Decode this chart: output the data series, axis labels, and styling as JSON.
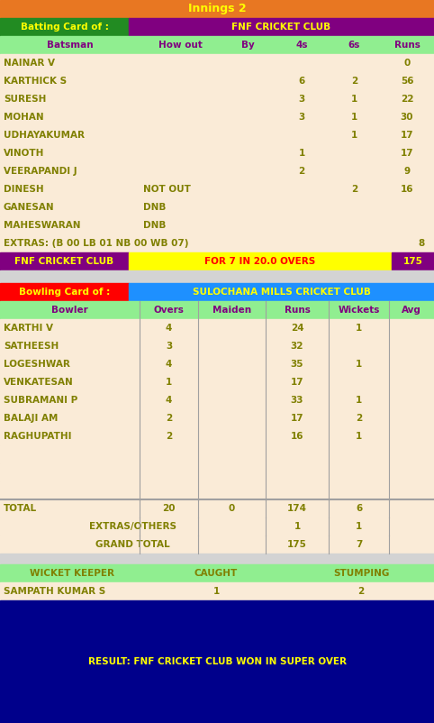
{
  "title": "Innings 2",
  "title_bg": "#E87722",
  "title_color": "#FFFF00",
  "batting_label": "Batting Card of :",
  "batting_team": "FNF CRICKET CLUB",
  "batting_label_bg": "#228B22",
  "batting_team_bg": "#800080",
  "batting_team_color": "#FFFF00",
  "batting_label_color": "#FFFF00",
  "bat_header": [
    "Batsman",
    "How out",
    "By",
    "4s",
    "6s",
    "Runs"
  ],
  "bat_header_bg": "#90EE90",
  "bat_header_color": "#800080",
  "bat_rows": [
    [
      "NAINAR V",
      "",
      "",
      "",
      "",
      "0"
    ],
    [
      "KARTHICK S",
      "",
      "",
      "6",
      "2",
      "56"
    ],
    [
      "SURESH",
      "",
      "",
      "3",
      "1",
      "22"
    ],
    [
      "MOHAN",
      "",
      "",
      "3",
      "1",
      "30"
    ],
    [
      "UDHAYAKUMAR",
      "",
      "",
      "",
      "1",
      "17"
    ],
    [
      "VINOTH",
      "",
      "",
      "1",
      "",
      "17"
    ],
    [
      "VEERAPANDI J",
      "",
      "",
      "2",
      "",
      "9"
    ],
    [
      "DINESH",
      "NOT OUT",
      "",
      "",
      "2",
      "16"
    ],
    [
      "GANESAN",
      "DNB",
      "",
      "",
      "",
      ""
    ],
    [
      "MAHESWARAN",
      "DNB",
      "",
      "",
      "",
      ""
    ]
  ],
  "bat_row_bg": "#FAEBD7",
  "bat_row_color": "#808000",
  "extras_text": "EXTRAS: (B 00 LB 01 NB 00 WB 07)",
  "extras_val": "8",
  "summary_team": "FNF CRICKET CLUB",
  "summary_mid": "FOR 7 IN 20.0 OVERS",
  "summary_score": "175",
  "summary_team_bg": "#800080",
  "summary_mid_bg": "#FFFF00",
  "summary_score_bg": "#800080",
  "summary_color": "#FFFF00",
  "summary_mid_color": "#FF0000",
  "gap_bg": "#D3D3D3",
  "bowling_label": "Bowling Card of :",
  "bowling_team": "SULOCHANA MILLS CRICKET CLUB",
  "bowling_label_bg": "#FF0000",
  "bowling_team_bg": "#1E90FF",
  "bowling_label_color": "#FFFF00",
  "bowling_team_color": "#FFFF00",
  "bowl_header": [
    "Bowler",
    "Overs",
    "Maiden",
    "Runs",
    "Wickets",
    "Avg"
  ],
  "bowl_header_bg": "#90EE90",
  "bowl_header_color": "#800080",
  "bowl_rows": [
    [
      "KARTHI V",
      "4",
      "",
      "24",
      "1",
      ""
    ],
    [
      "SATHEESH",
      "3",
      "",
      "32",
      "",
      ""
    ],
    [
      "LOGESHWAR",
      "4",
      "",
      "35",
      "1",
      ""
    ],
    [
      "VENKATESAN",
      "1",
      "",
      "17",
      "",
      ""
    ],
    [
      "SUBRAMANI P",
      "4",
      "",
      "33",
      "1",
      ""
    ],
    [
      "BALAJI AM",
      "2",
      "",
      "17",
      "2",
      ""
    ],
    [
      "RAGHUPATHI",
      "2",
      "",
      "16",
      "1",
      ""
    ],
    [
      "",
      "",
      "",
      "",
      "",
      ""
    ],
    [
      "",
      "",
      "",
      "",
      "",
      ""
    ],
    [
      "",
      "",
      "",
      "",
      "",
      ""
    ]
  ],
  "bowl_row_bg": "#FAEBD7",
  "bowl_row_color": "#808000",
  "total_row": [
    "TOTAL",
    "20",
    "0",
    "174",
    "6",
    ""
  ],
  "extras_row_label": "EXTRAS/OTHERS",
  "extras_row_vals": [
    "1",
    "1"
  ],
  "grand_row_label": "GRAND TOTAL",
  "grand_row_vals": [
    "175",
    "7"
  ],
  "wk_header": [
    "WICKET KEEPER",
    "CAUGHT",
    "STUMPING"
  ],
  "wk_row": [
    "SAMPATH KUMAR S",
    "1",
    "2"
  ],
  "wk_header_bg": "#90EE90",
  "wk_header_color": "#808000",
  "wk_row_bg": "#FAEBD7",
  "wk_row_color": "#808000",
  "result_text": "RESULT: FNF CRICKET CLUB WON IN SUPER OVER",
  "result_bg": "#00008B",
  "result_color": "#FFFF00"
}
